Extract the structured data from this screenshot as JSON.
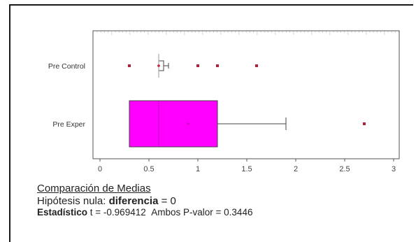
{
  "chart_data": {
    "type": "boxplot",
    "orientation": "horizontal",
    "title": "",
    "xlabel": "",
    "ylabel": "",
    "xlim": [
      0,
      3
    ],
    "xticks": [
      0,
      0.5,
      1,
      1.5,
      2,
      2.5,
      3
    ],
    "xtick_labels": [
      "0",
      "0.5",
      "1",
      "1.5",
      "2",
      "2.5",
      "3"
    ],
    "categories": [
      "Pre Control",
      "Pre Exper"
    ],
    "series": [
      {
        "name": "Pre Control",
        "whisker_low": 0.6,
        "q1": 0.6,
        "median": 0.6,
        "q3": 0.65,
        "whisker_high": 0.7,
        "mean": 0.6,
        "outliers": [
          0.3,
          1.0,
          1.2,
          1.6
        ],
        "fill": "#ffffff"
      },
      {
        "name": "Pre Exper",
        "whisker_low": 0.3,
        "q1": 0.3,
        "median": 0.6,
        "q3": 1.2,
        "whisker_high": 1.9,
        "mean": 0.9,
        "outliers": [
          2.7
        ],
        "fill": "#ff00ff"
      }
    ],
    "colors": {
      "box_fill_exper": "#ff00ff",
      "box_stroke": "#444444",
      "outlier": "#b0203a",
      "axis": "#555555",
      "ruler": "#d4d4d4"
    }
  },
  "caption": {
    "title": "Comparación de Medias",
    "null_hypothesis_label": "Hipótesis nula: ",
    "null_hypothesis_bold": "diferencia",
    "null_hypothesis_value": " = 0",
    "statistic_label": "Estadístico",
    "statistic_value": " t = -0.969412",
    "pvalue_text": "Ambos P-valor = 0.3446"
  }
}
